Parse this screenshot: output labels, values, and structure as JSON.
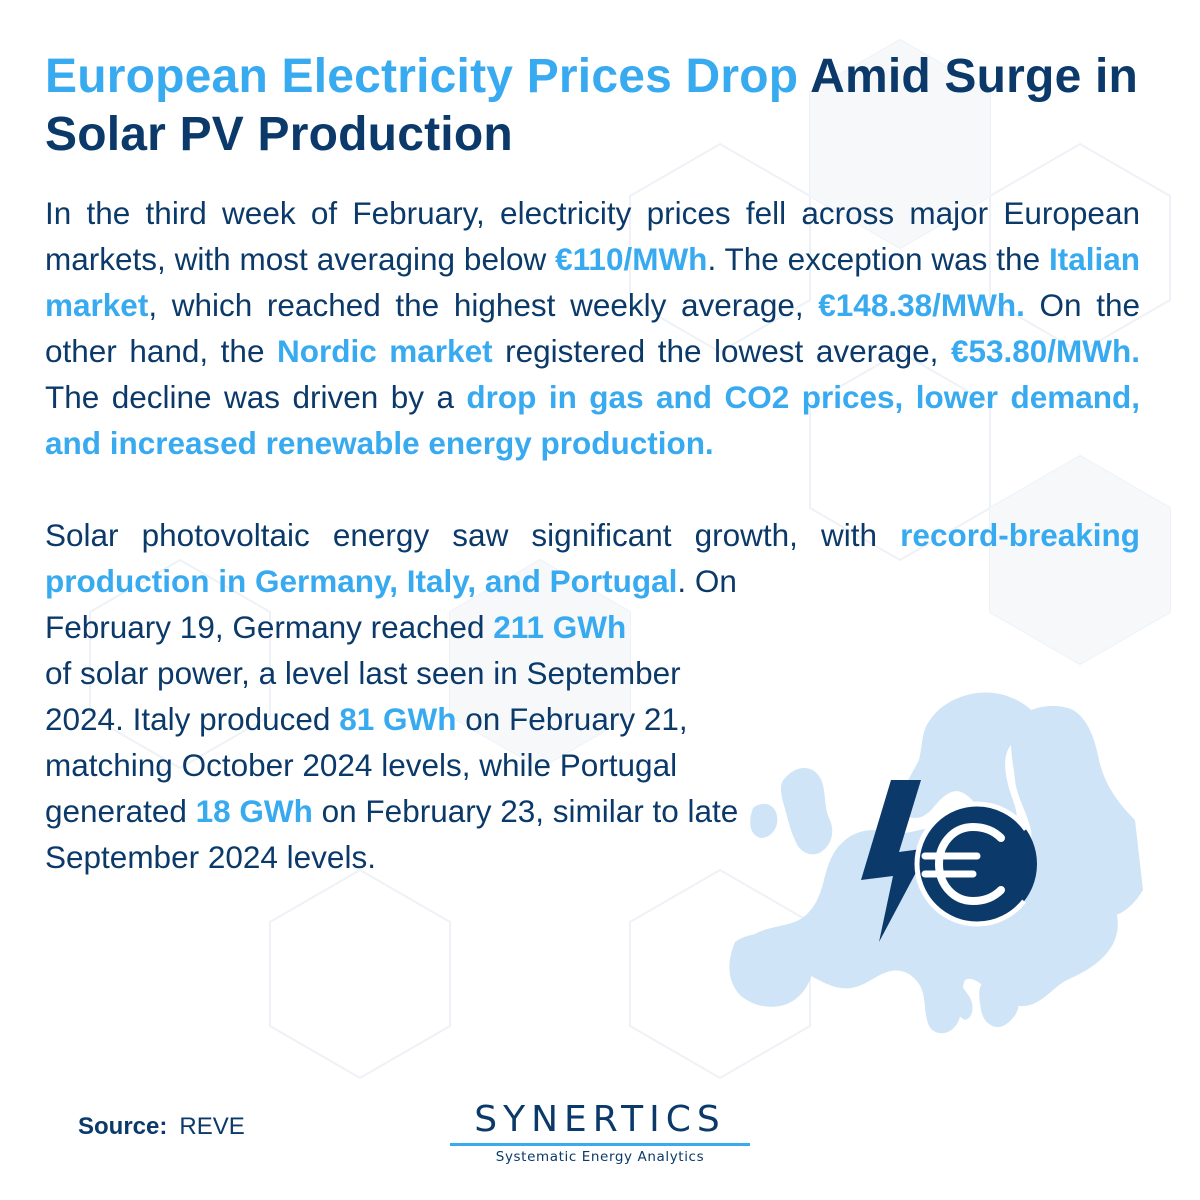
{
  "title": {
    "highlight": "European Electricity Prices Drop",
    "rest": " Amid Surge in Solar PV Production"
  },
  "paragraph1": {
    "t1": "In the third week of February, electricity prices fell across major European markets, with most averaging below ",
    "h1": "€110/MWh",
    "t2": ". The exception was the ",
    "h2": "Italian market",
    "t3": ", which reached the highest weekly average, ",
    "h3": "€148.38/MWh.",
    "t4": " On the other hand, the ",
    "h4": "Nordic market",
    "t5": " registered the lowest average, ",
    "h5": "€53.80/MWh.",
    "t6": " The decline was driven by a ",
    "h6": "drop in gas and CO2 prices, lower demand, and increased renewable energy production."
  },
  "paragraph2": {
    "t1": "Solar photovoltaic energy saw significant growth, with ",
    "h1": "record-breaking production in Germany, Italy, and Portugal",
    "t2": ". On"
  },
  "paragraph3": {
    "t1": "February 19, Germany reached ",
    "h1": "211 GWh",
    "t2": " of solar power, a level last seen in September 2024. Italy produced ",
    "h2": "81 GWh",
    "t3": " on February 21, matching October 2024 levels, while Portugal generated ",
    "h3": "18 GWh",
    "t4": " on February 23, similar to late September 2024 levels."
  },
  "footer": {
    "source_label": "Source:",
    "source_value": "REVE"
  },
  "brand": {
    "name": "SYNERTICS",
    "tagline": "Systematic Energy Analytics"
  },
  "icons": {
    "map": "europe-map-icon",
    "bolt": "lightning-bolt-icon",
    "euro": "euro-coin-icon"
  },
  "colors": {
    "dark_blue": "#0b3a6a",
    "accent_blue": "#38aaf0",
    "map_blue": "#cfe4f6"
  }
}
